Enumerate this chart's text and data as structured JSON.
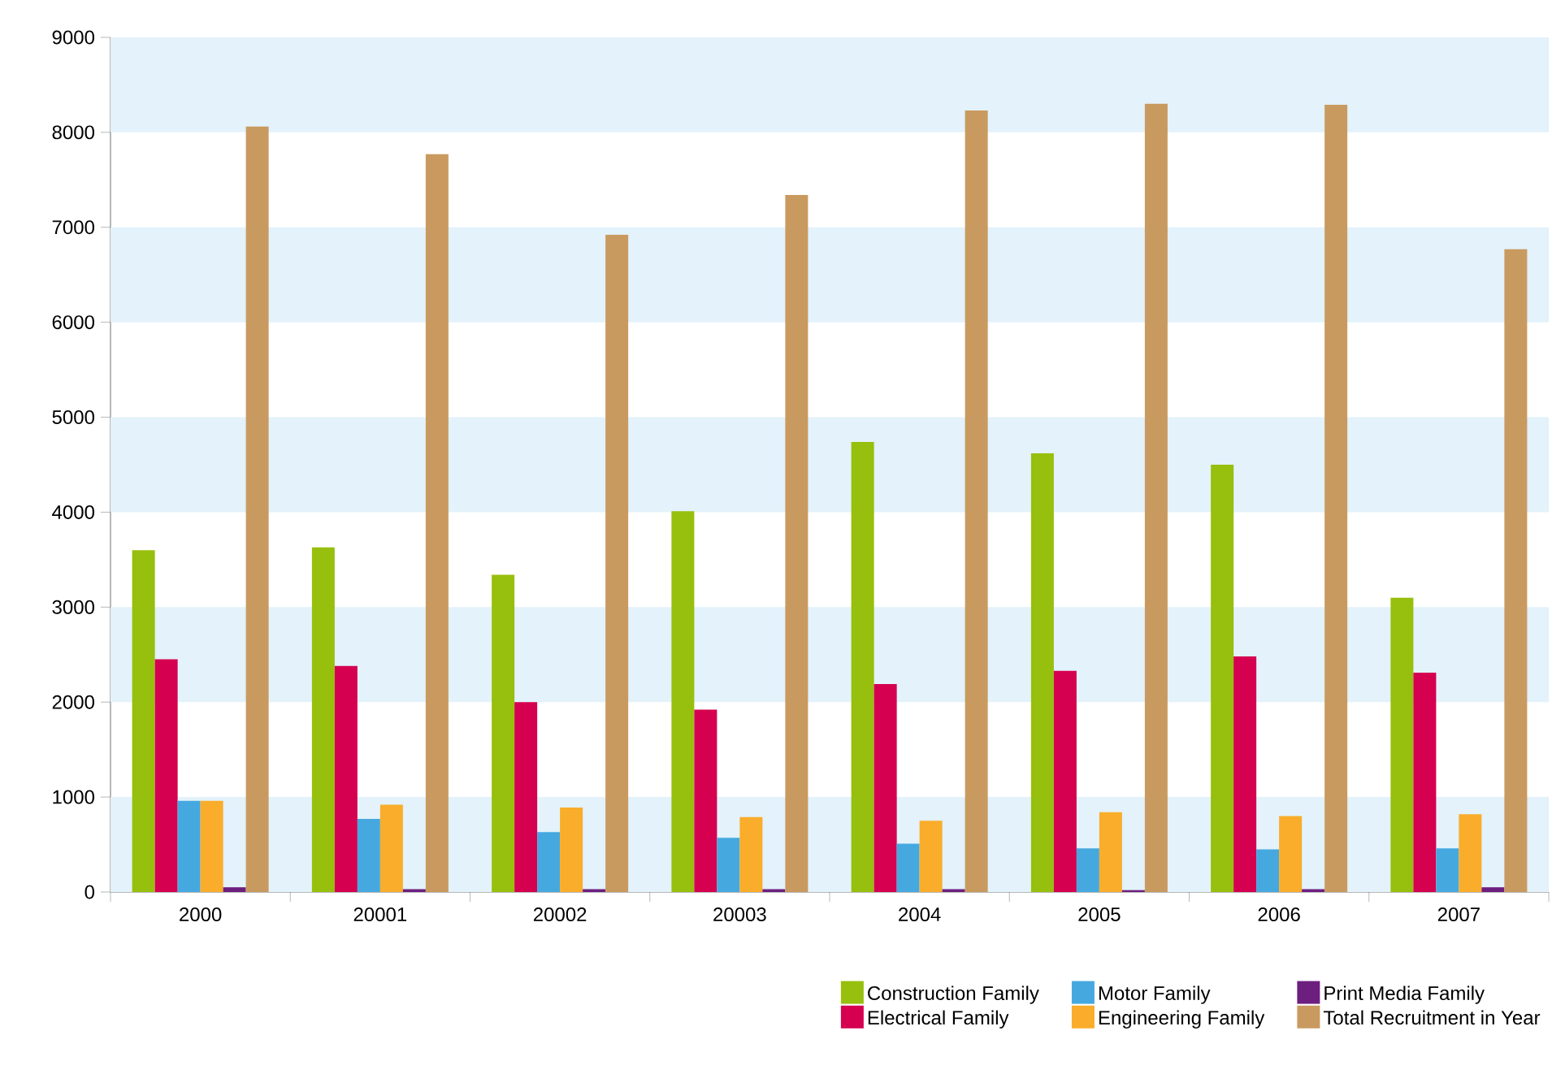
{
  "chart_data": {
    "type": "bar",
    "categories": [
      "2000",
      "20001",
      "20002",
      "20003",
      "2004",
      "2005",
      "2006",
      "2007"
    ],
    "series": [
      {
        "name": "Construction Family",
        "color": "#97bf0d",
        "values": [
          3600,
          3630,
          3340,
          4010,
          4740,
          4620,
          4500,
          3100
        ]
      },
      {
        "name": "Electrical Family",
        "color": "#d5004f",
        "values": [
          2450,
          2380,
          2000,
          1920,
          2190,
          2330,
          2480,
          2310
        ]
      },
      {
        "name": "Motor Family",
        "color": "#45a9e0",
        "values": [
          960,
          770,
          630,
          570,
          510,
          460,
          450,
          460
        ]
      },
      {
        "name": "Engineering Family",
        "color": "#f9ad2a",
        "values": [
          960,
          920,
          890,
          790,
          750,
          840,
          800,
          820
        ]
      },
      {
        "name": "Print Media Family",
        "color": "#6d1f80",
        "values": [
          50,
          30,
          30,
          30,
          30,
          20,
          30,
          50
        ]
      },
      {
        "name": "Total Recruitment in Year",
        "color": "#c99a5f",
        "values": [
          8060,
          7770,
          6920,
          7340,
          8230,
          8300,
          8290,
          6770
        ]
      }
    ],
    "ylim": [
      0,
      9000
    ],
    "yticks": [
      0,
      1000,
      2000,
      3000,
      4000,
      5000,
      6000,
      7000,
      8000,
      9000
    ],
    "bands": [
      {
        "axis": "y",
        "from": 0,
        "to": 1000,
        "color": "#e3f2fb"
      },
      {
        "axis": "y",
        "from": 2000,
        "to": 3000,
        "color": "#e3f2fb"
      },
      {
        "axis": "y",
        "from": 4000,
        "to": 5000,
        "color": "#e3f2fb"
      },
      {
        "axis": "y",
        "from": 6000,
        "to": 7000,
        "color": "#e3f2fb"
      },
      {
        "axis": "y",
        "from": 8000,
        "to": 9000,
        "color": "#e3f2fb"
      }
    ],
    "legend": "bottom right"
  }
}
